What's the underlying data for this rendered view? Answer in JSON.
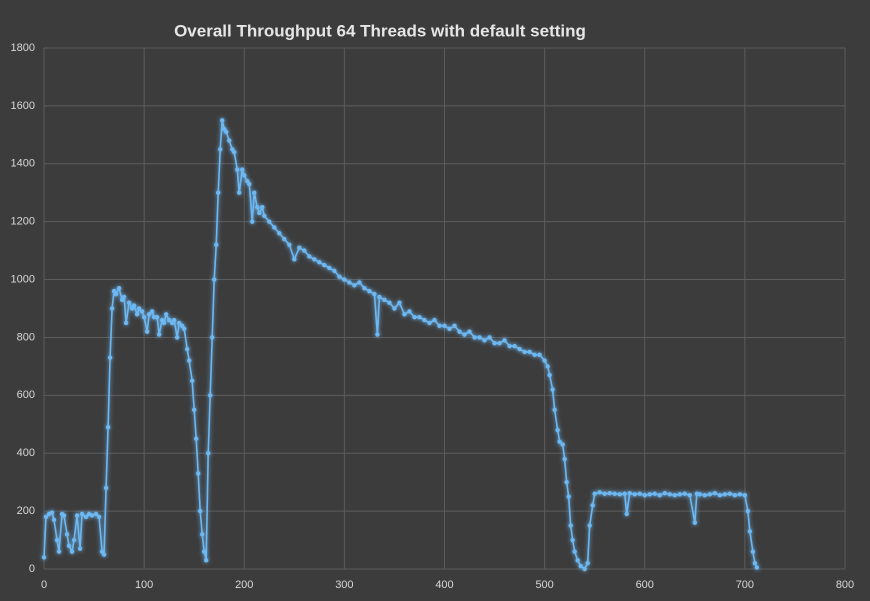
{
  "chart_data": {
    "type": "line",
    "title": "Overall Throughput 64 Threads with default setting",
    "x": [
      0,
      2,
      5,
      8,
      10,
      13,
      15,
      18,
      20,
      23,
      25,
      28,
      30,
      33,
      36,
      38,
      42,
      45,
      48,
      52,
      55,
      58,
      60,
      62,
      64,
      66,
      68,
      70,
      72,
      75,
      78,
      80,
      82,
      85,
      88,
      90,
      93,
      95,
      98,
      100,
      103,
      105,
      108,
      110,
      113,
      115,
      118,
      120,
      122,
      125,
      128,
      130,
      133,
      135,
      138,
      140,
      143,
      145,
      148,
      150,
      152,
      154,
      156,
      158,
      160,
      162,
      164,
      166,
      168,
      170,
      172,
      174,
      176,
      178,
      180,
      182,
      185,
      188,
      190,
      193,
      195,
      198,
      200,
      203,
      205,
      208,
      210,
      213,
      215,
      218,
      220,
      225,
      230,
      235,
      240,
      245,
      250,
      255,
      260,
      265,
      270,
      275,
      280,
      285,
      290,
      295,
      300,
      305,
      310,
      315,
      320,
      325,
      330,
      333,
      335,
      340,
      345,
      350,
      355,
      360,
      365,
      370,
      375,
      380,
      385,
      390,
      395,
      400,
      405,
      410,
      415,
      420,
      425,
      430,
      435,
      440,
      445,
      450,
      455,
      460,
      465,
      470,
      475,
      480,
      485,
      490,
      495,
      500,
      503,
      505,
      508,
      510,
      513,
      515,
      518,
      520,
      522,
      524,
      526,
      528,
      530,
      533,
      536,
      540,
      543,
      545,
      548,
      550,
      555,
      560,
      565,
      570,
      575,
      580,
      582,
      585,
      590,
      595,
      600,
      605,
      610,
      615,
      620,
      625,
      630,
      635,
      640,
      645,
      650,
      652,
      655,
      660,
      665,
      670,
      675,
      680,
      685,
      690,
      695,
      700,
      703,
      705,
      708,
      710,
      712
    ],
    "series": [
      {
        "name": "Throughput",
        "color": "#6db8f2",
        "values": [
          40,
          180,
          190,
          195,
          170,
          100,
          60,
          190,
          185,
          120,
          80,
          60,
          100,
          185,
          70,
          190,
          180,
          190,
          185,
          190,
          180,
          60,
          50,
          280,
          490,
          730,
          900,
          960,
          950,
          970,
          930,
          940,
          850,
          920,
          900,
          910,
          880,
          900,
          890,
          870,
          820,
          880,
          890,
          870,
          870,
          810,
          860,
          850,
          880,
          860,
          850,
          860,
          800,
          850,
          840,
          830,
          760,
          720,
          650,
          550,
          450,
          330,
          200,
          120,
          60,
          30,
          400,
          600,
          800,
          1000,
          1120,
          1300,
          1450,
          1550,
          1520,
          1510,
          1480,
          1450,
          1440,
          1380,
          1300,
          1380,
          1360,
          1340,
          1330,
          1200,
          1300,
          1250,
          1230,
          1250,
          1220,
          1200,
          1180,
          1160,
          1140,
          1120,
          1070,
          1110,
          1100,
          1080,
          1070,
          1060,
          1050,
          1040,
          1030,
          1010,
          1000,
          990,
          980,
          990,
          970,
          960,
          950,
          810,
          940,
          930,
          920,
          900,
          920,
          880,
          890,
          870,
          870,
          860,
          850,
          860,
          840,
          840,
          830,
          840,
          820,
          810,
          820,
          800,
          800,
          790,
          800,
          780,
          780,
          790,
          770,
          770,
          760,
          750,
          750,
          740,
          740,
          720,
          700,
          670,
          620,
          550,
          480,
          440,
          430,
          380,
          300,
          250,
          150,
          100,
          60,
          30,
          10,
          0,
          20,
          150,
          220,
          260,
          265,
          260,
          262,
          260,
          258,
          260,
          190,
          262,
          258,
          260,
          255,
          258,
          260,
          255,
          262,
          258,
          255,
          258,
          260,
          255,
          160,
          260,
          258,
          255,
          258,
          262,
          255,
          258,
          260,
          255,
          258,
          255,
          200,
          130,
          60,
          20,
          5
        ]
      }
    ],
    "xlim": [
      0,
      800
    ],
    "xticks": [
      0,
      100,
      200,
      300,
      400,
      500,
      600,
      700,
      800
    ],
    "ylim": [
      0,
      1800
    ],
    "yticks": [
      0,
      200,
      400,
      600,
      800,
      1000,
      1200,
      1400,
      1600,
      1800
    ],
    "grid": true
  }
}
